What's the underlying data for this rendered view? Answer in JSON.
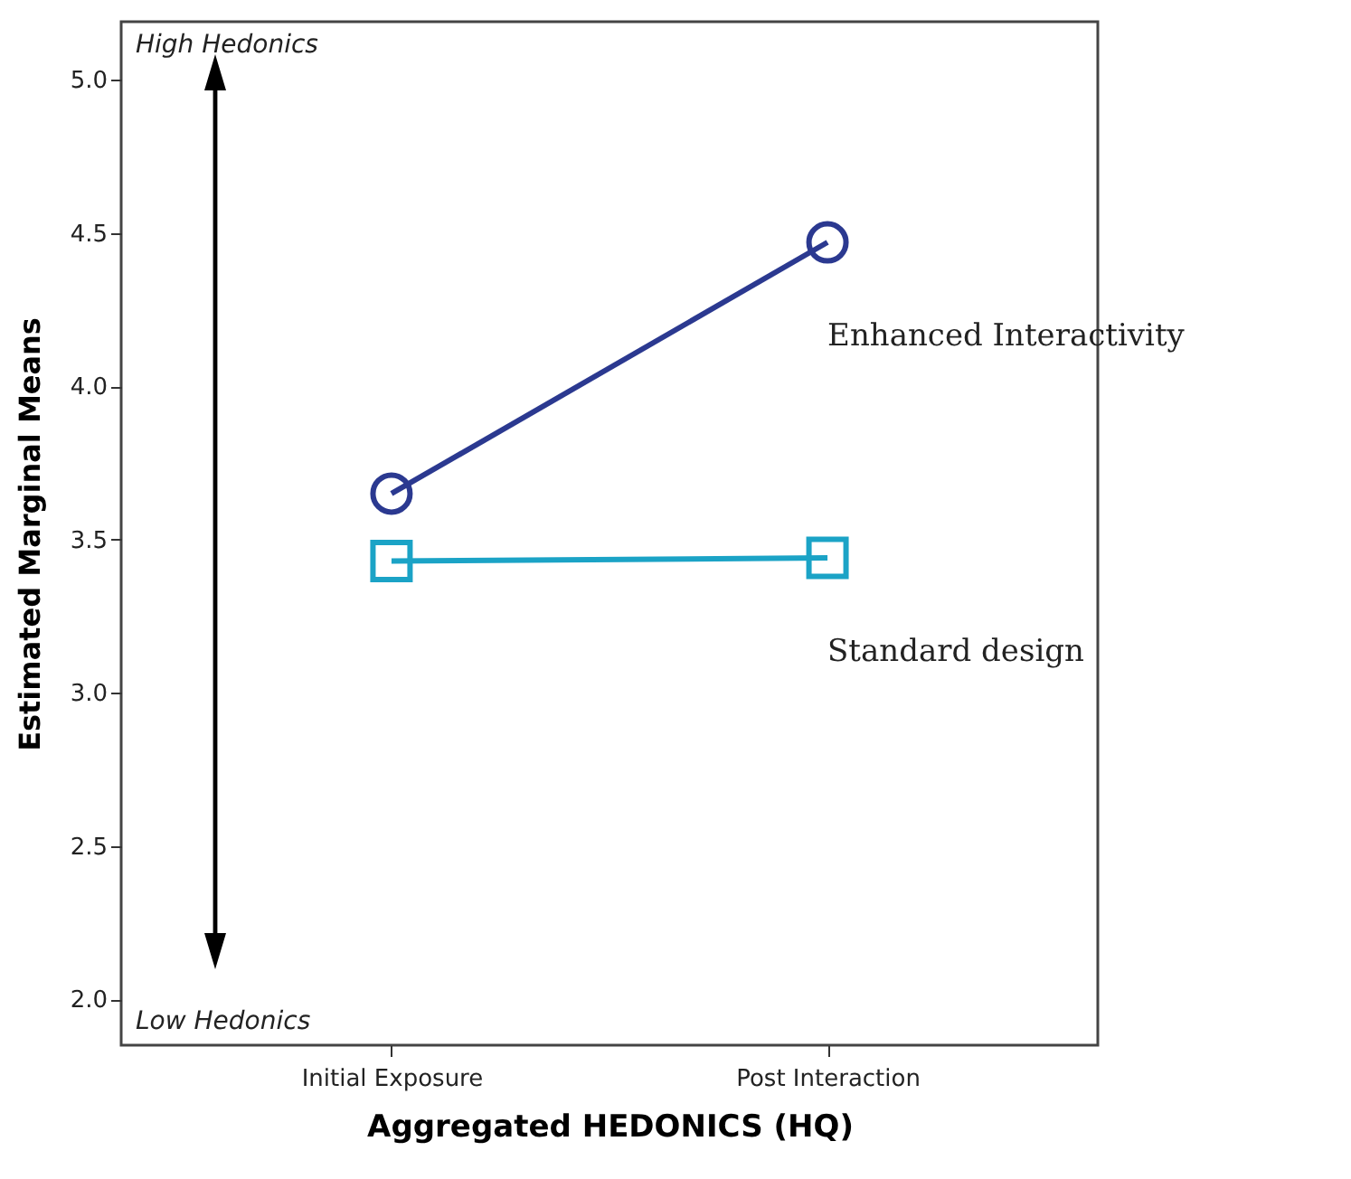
{
  "chart_data": {
    "type": "line",
    "xlabel": "Aggregated HEDONICS (HQ)",
    "ylabel": "Estimated Marginal Means",
    "categories": [
      "Initial Exposure",
      "Post Interaction"
    ],
    "series": [
      {
        "name": "Enhanced Interactivity",
        "color": "#2b3990",
        "marker": "circle",
        "values": [
          3.65,
          4.47
        ]
      },
      {
        "name": "Standard design",
        "color": "#1ba3c6",
        "marker": "square",
        "values": [
          3.43,
          3.44
        ]
      }
    ],
    "ylim": [
      1.85,
      5.19
    ],
    "yticks": [
      {
        "value": 2,
        "label": "2.0"
      },
      {
        "value": 2.5,
        "label": "2.5"
      },
      {
        "value": 3,
        "label": "3.0"
      },
      {
        "value": 3.5,
        "label": "3.5"
      },
      {
        "value": 4,
        "label": "4.0"
      },
      {
        "value": 4.5,
        "label": "4.5"
      },
      {
        "value": 5,
        "label": "5.0"
      }
    ],
    "annotations": [
      "High Hedonics",
      "Low Hedonics"
    ],
    "line_style": "solid"
  }
}
